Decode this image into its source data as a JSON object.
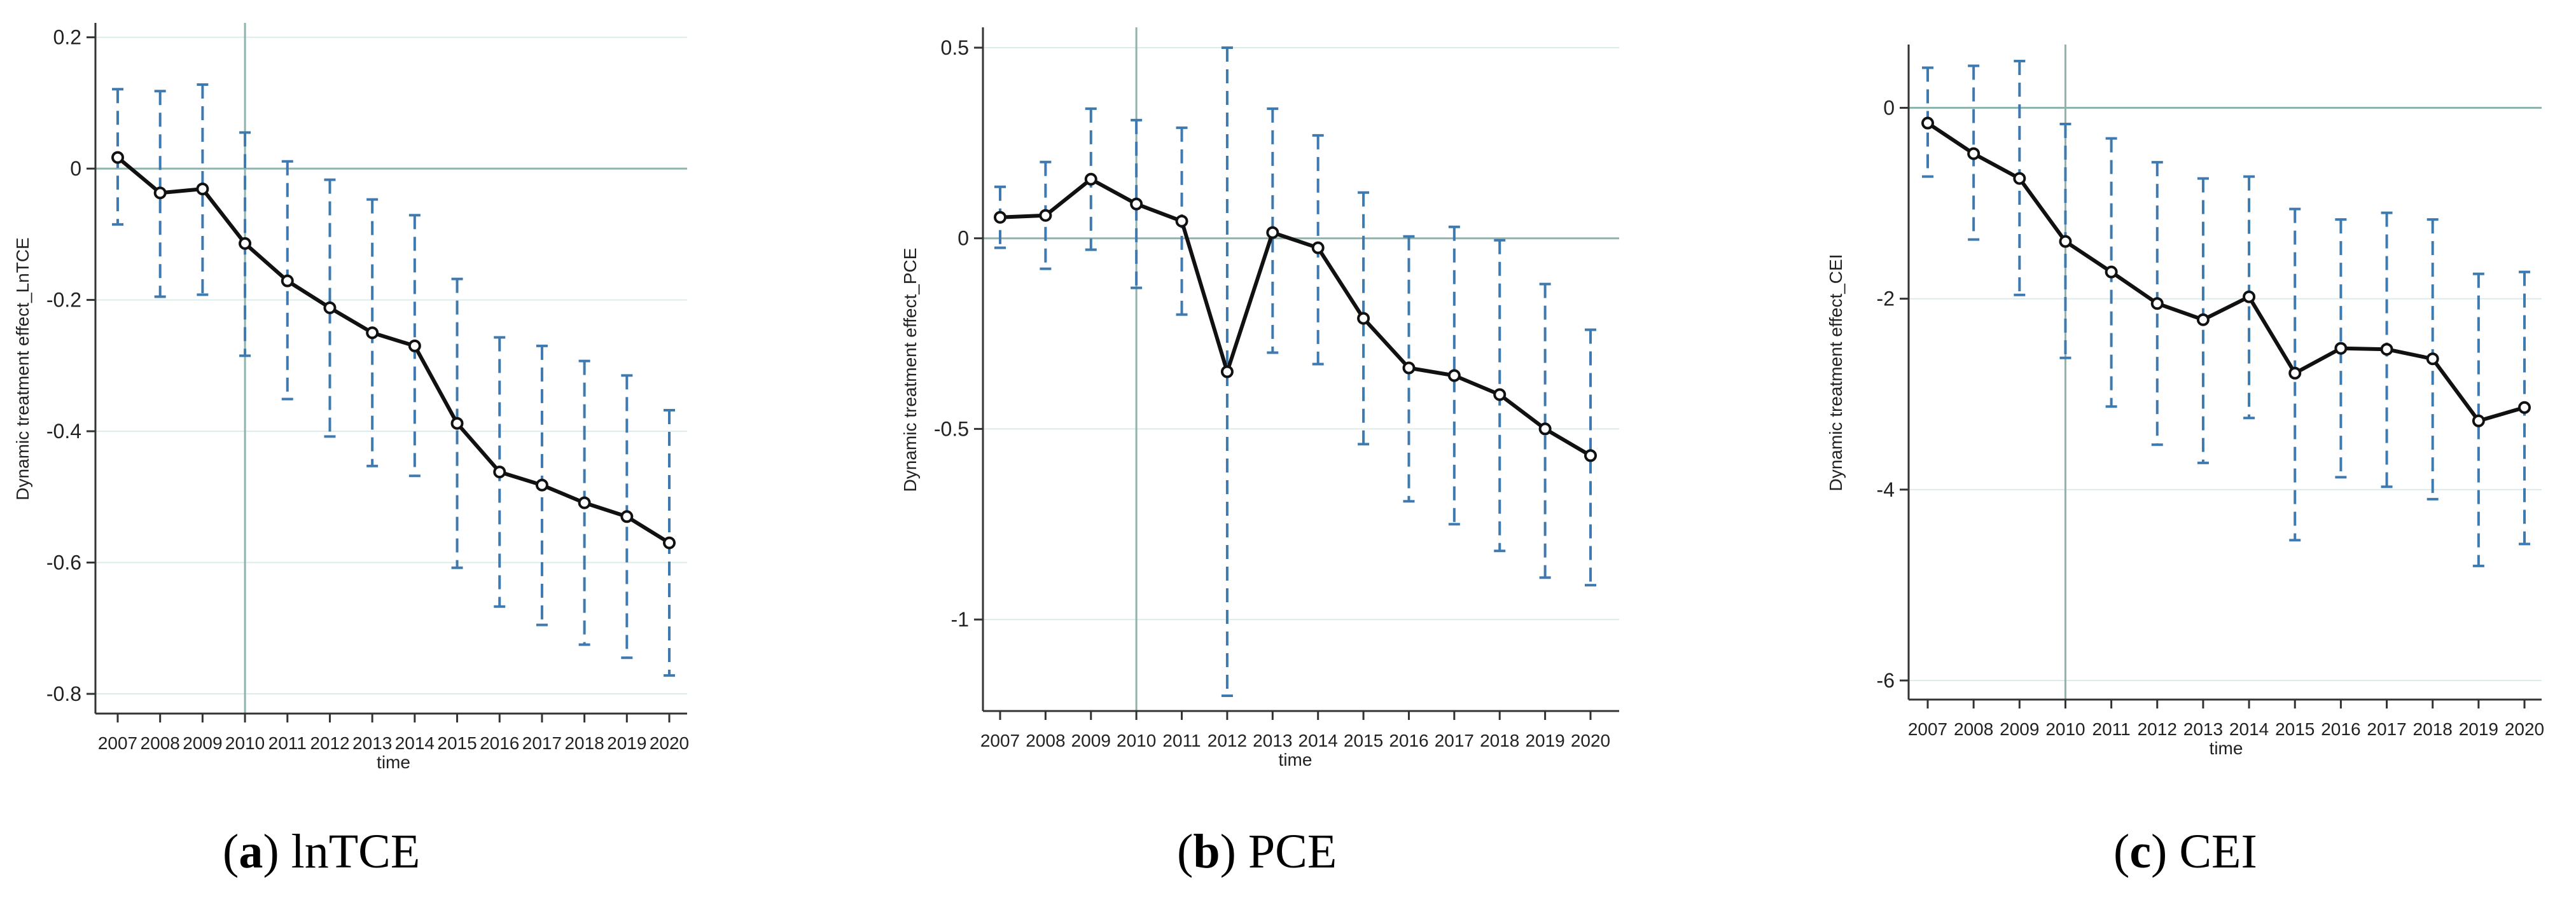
{
  "chart_data": [
    {
      "type": "line",
      "ylabel": "Dynamic treatment effect_LnTCE",
      "xlabel": "time",
      "caption_letter": "a",
      "caption_text": "lnTCE",
      "categories": [
        "2007",
        "2008",
        "2009",
        "2010",
        "2011",
        "2012",
        "2013",
        "2014",
        "2015",
        "2016",
        "2017",
        "2018",
        "2019",
        "2020"
      ],
      "values": [
        0.017,
        -0.037,
        -0.031,
        -0.114,
        -0.171,
        -0.212,
        -0.25,
        -0.27,
        -0.388,
        -0.462,
        -0.482,
        -0.509,
        -0.53,
        -0.57
      ],
      "ci_lower": [
        -0.085,
        -0.195,
        -0.192,
        -0.285,
        -0.351,
        -0.408,
        -0.453,
        -0.468,
        -0.608,
        -0.667,
        -0.695,
        -0.725,
        -0.745,
        -0.772
      ],
      "ci_upper": [
        0.121,
        0.118,
        0.128,
        0.055,
        0.011,
        -0.017,
        -0.047,
        -0.071,
        -0.168,
        -0.257,
        -0.27,
        -0.293,
        -0.315,
        -0.368
      ],
      "ylim": [
        -0.83,
        0.22
      ],
      "yticks": [
        0.2,
        0,
        -0.2,
        -0.4,
        -0.6,
        -0.8
      ],
      "ytick_labels": [
        "0.2",
        "0",
        "-0.2",
        "-0.4",
        "-0.6",
        "-0.8"
      ],
      "vline_year": "2010",
      "hline": 0
    },
    {
      "type": "line",
      "ylabel": "Dynamic treatment effect_PCE",
      "xlabel": "time",
      "caption_letter": "b",
      "caption_text": "PCE",
      "categories": [
        "2007",
        "2008",
        "2009",
        "2010",
        "2011",
        "2012",
        "2013",
        "2014",
        "2015",
        "2016",
        "2017",
        "2018",
        "2019",
        "2020"
      ],
      "values": [
        0.055,
        0.06,
        0.155,
        0.09,
        0.045,
        -0.35,
        0.015,
        -0.025,
        -0.21,
        -0.34,
        -0.36,
        -0.41,
        -0.5,
        -0.57
      ],
      "ci_lower": [
        -0.025,
        -0.08,
        -0.03,
        -0.13,
        -0.2,
        -1.2,
        -0.3,
        -0.33,
        -0.54,
        -0.69,
        -0.75,
        -0.82,
        -0.89,
        -0.91
      ],
      "ci_upper": [
        0.135,
        0.2,
        0.34,
        0.31,
        0.29,
        0.5,
        0.34,
        0.27,
        0.12,
        0.005,
        0.03,
        -0.005,
        -0.12,
        -0.24
      ],
      "ylim": [
        -1.24,
        0.55
      ],
      "yticks": [
        0.5,
        0,
        -0.5,
        -1
      ],
      "ytick_labels": [
        "0.5",
        "0",
        "-0.5",
        "-1"
      ],
      "vline_year": "2010",
      "hline": 0
    },
    {
      "type": "line",
      "ylabel": "Dynamic treatment effect_CEI",
      "xlabel": "time",
      "caption_letter": "c",
      "caption_text": "CEI",
      "categories": [
        "2007",
        "2008",
        "2009",
        "2010",
        "2011",
        "2012",
        "2013",
        "2014",
        "2015",
        "2016",
        "2017",
        "2018",
        "2019",
        "2020"
      ],
      "values": [
        -0.16,
        -0.48,
        -0.74,
        -1.4,
        -1.72,
        -2.05,
        -2.22,
        -1.98,
        -2.78,
        -2.52,
        -2.53,
        -2.63,
        -3.28,
        -3.14
      ],
      "ci_lower": [
        -0.72,
        -1.38,
        -1.96,
        -2.62,
        -3.13,
        -3.53,
        -3.72,
        -3.25,
        -4.53,
        -3.87,
        -3.97,
        -4.1,
        -4.8,
        -4.57
      ],
      "ci_upper": [
        0.42,
        0.44,
        0.49,
        -0.17,
        -0.32,
        -0.57,
        -0.74,
        -0.72,
        -1.06,
        -1.17,
        -1.1,
        -1.17,
        -1.74,
        -1.72
      ],
      "ylim": [
        -6.2,
        0.65
      ],
      "yticks": [
        0,
        -2,
        -4,
        -6
      ],
      "ytick_labels": [
        "0",
        "-2",
        "-4",
        "-6"
      ],
      "vline_year": "2010",
      "hline": 0
    }
  ]
}
